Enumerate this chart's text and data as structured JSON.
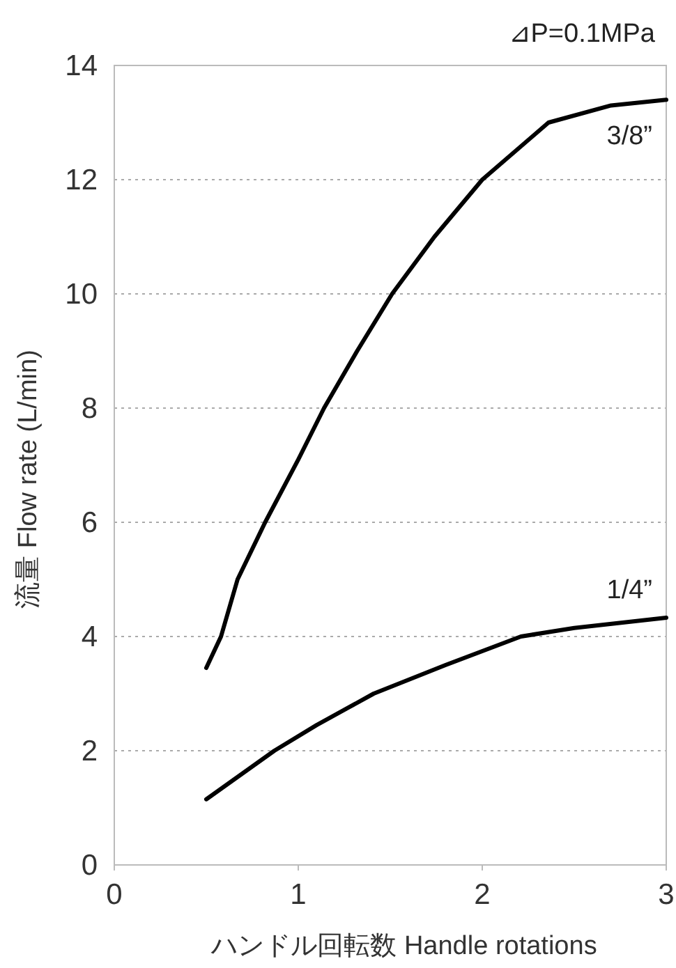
{
  "chart_data": {
    "type": "line",
    "title": "⊿P=0.1MPa",
    "xlabel": "ハンドル回転数 Handle rotations",
    "ylabel": "流量  Flow rate (L/min)",
    "xlim": [
      0,
      3
    ],
    "xticks": [
      0,
      1,
      2,
      3
    ],
    "ylim": [
      0,
      14
    ],
    "yticks": [
      0,
      2,
      4,
      6,
      8,
      10,
      12,
      14
    ],
    "grid": "y",
    "marker": "none",
    "line_style": "solid",
    "series": [
      {
        "name": "3/8”",
        "color": "#000000",
        "x": [
          0.5,
          0.58,
          0.67,
          0.82,
          1.0,
          1.14,
          1.32,
          1.51,
          1.74,
          2.0,
          2.36,
          2.7,
          3.0
        ],
        "values": [
          3.45,
          4,
          5,
          6,
          7.1,
          8,
          9,
          10,
          11,
          12,
          13,
          13.3,
          13.4
        ]
      },
      {
        "name": "1/4”",
        "color": "#000000",
        "x": [
          0.5,
          0.87,
          1.1,
          1.41,
          1.8,
          2.21,
          2.5,
          3.0
        ],
        "values": [
          1.15,
          2,
          2.45,
          3,
          3.5,
          4,
          4.15,
          4.33
        ]
      }
    ]
  }
}
